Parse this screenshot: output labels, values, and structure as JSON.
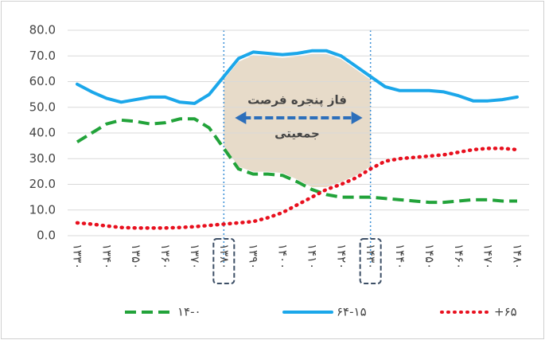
{
  "chart_data": {
    "type": "line",
    "categories": [
      "۱۳۳۰",
      null,
      "۱۳۴۰",
      null,
      "۱۳۵۰",
      null,
      "۱۳۶۰",
      null,
      "۱۳۷۰",
      null,
      "۱۳۸۰",
      null,
      "۱۳۹۰",
      null,
      "۱۴۰۰",
      null,
      "۱۴۱۰",
      null,
      "۱۴۲۰",
      null,
      "۱۴۳۰",
      null,
      "۱۴۴۰",
      null,
      "۱۴۵۰",
      null,
      "۱۴۶۰",
      null,
      "۱۴۷۰",
      null,
      "۱۴۸۰"
    ],
    "series": [
      {
        "name": "۱۴-۰",
        "color": "#22a33a",
        "style": "dashed",
        "values": [
          36.5,
          40,
          43.5,
          45,
          44.5,
          43.5,
          44,
          45.5,
          45.5,
          42,
          34,
          26,
          24,
          24,
          23.5,
          21,
          18,
          16,
          15,
          15,
          15,
          14.5,
          14,
          13.5,
          13,
          13,
          13.5,
          14,
          14,
          13.5,
          13.5
        ]
      },
      {
        "name": "۶۴-۱۵",
        "color": "#1ba7ea",
        "style": "solid",
        "values": [
          59,
          56,
          53.5,
          52,
          53,
          54,
          54,
          52,
          51.5,
          55,
          62,
          69,
          71.5,
          71,
          70.5,
          71,
          72,
          72,
          70,
          66,
          62,
          58,
          56.5,
          56.5,
          56.5,
          56,
          54.5,
          52.5,
          52.5,
          53,
          54
        ]
      },
      {
        "name": "+۶۵",
        "color": "#e8101e",
        "style": "dotted",
        "values": [
          5,
          4.5,
          3.8,
          3.2,
          3,
          3,
          3,
          3.2,
          3.5,
          4,
          4.5,
          5,
          5.5,
          7,
          9,
          12,
          15,
          18,
          20,
          22.5,
          26,
          29,
          30,
          30.5,
          31,
          31.5,
          32.5,
          33.5,
          34,
          34,
          33.5
        ]
      }
    ],
    "ylim": [
      0,
      80
    ],
    "yticks": [
      {
        "value": 0,
        "label": "0.0"
      },
      {
        "value": 10,
        "label": "10.0"
      },
      {
        "value": 20,
        "label": "20.0"
      },
      {
        "value": 30,
        "label": "30.0"
      },
      {
        "value": 40,
        "label": "40.0"
      },
      {
        "value": 50,
        "label": "50.0"
      },
      {
        "value": 60,
        "label": "60.0"
      },
      {
        "value": 70,
        "label": "70.0"
      },
      {
        "value": 80,
        "label": "80.0"
      }
    ],
    "grid": true,
    "legend": "bottom",
    "annotations": [
      "فاز پنجره فرصت",
      "جمعیتی"
    ]
  }
}
